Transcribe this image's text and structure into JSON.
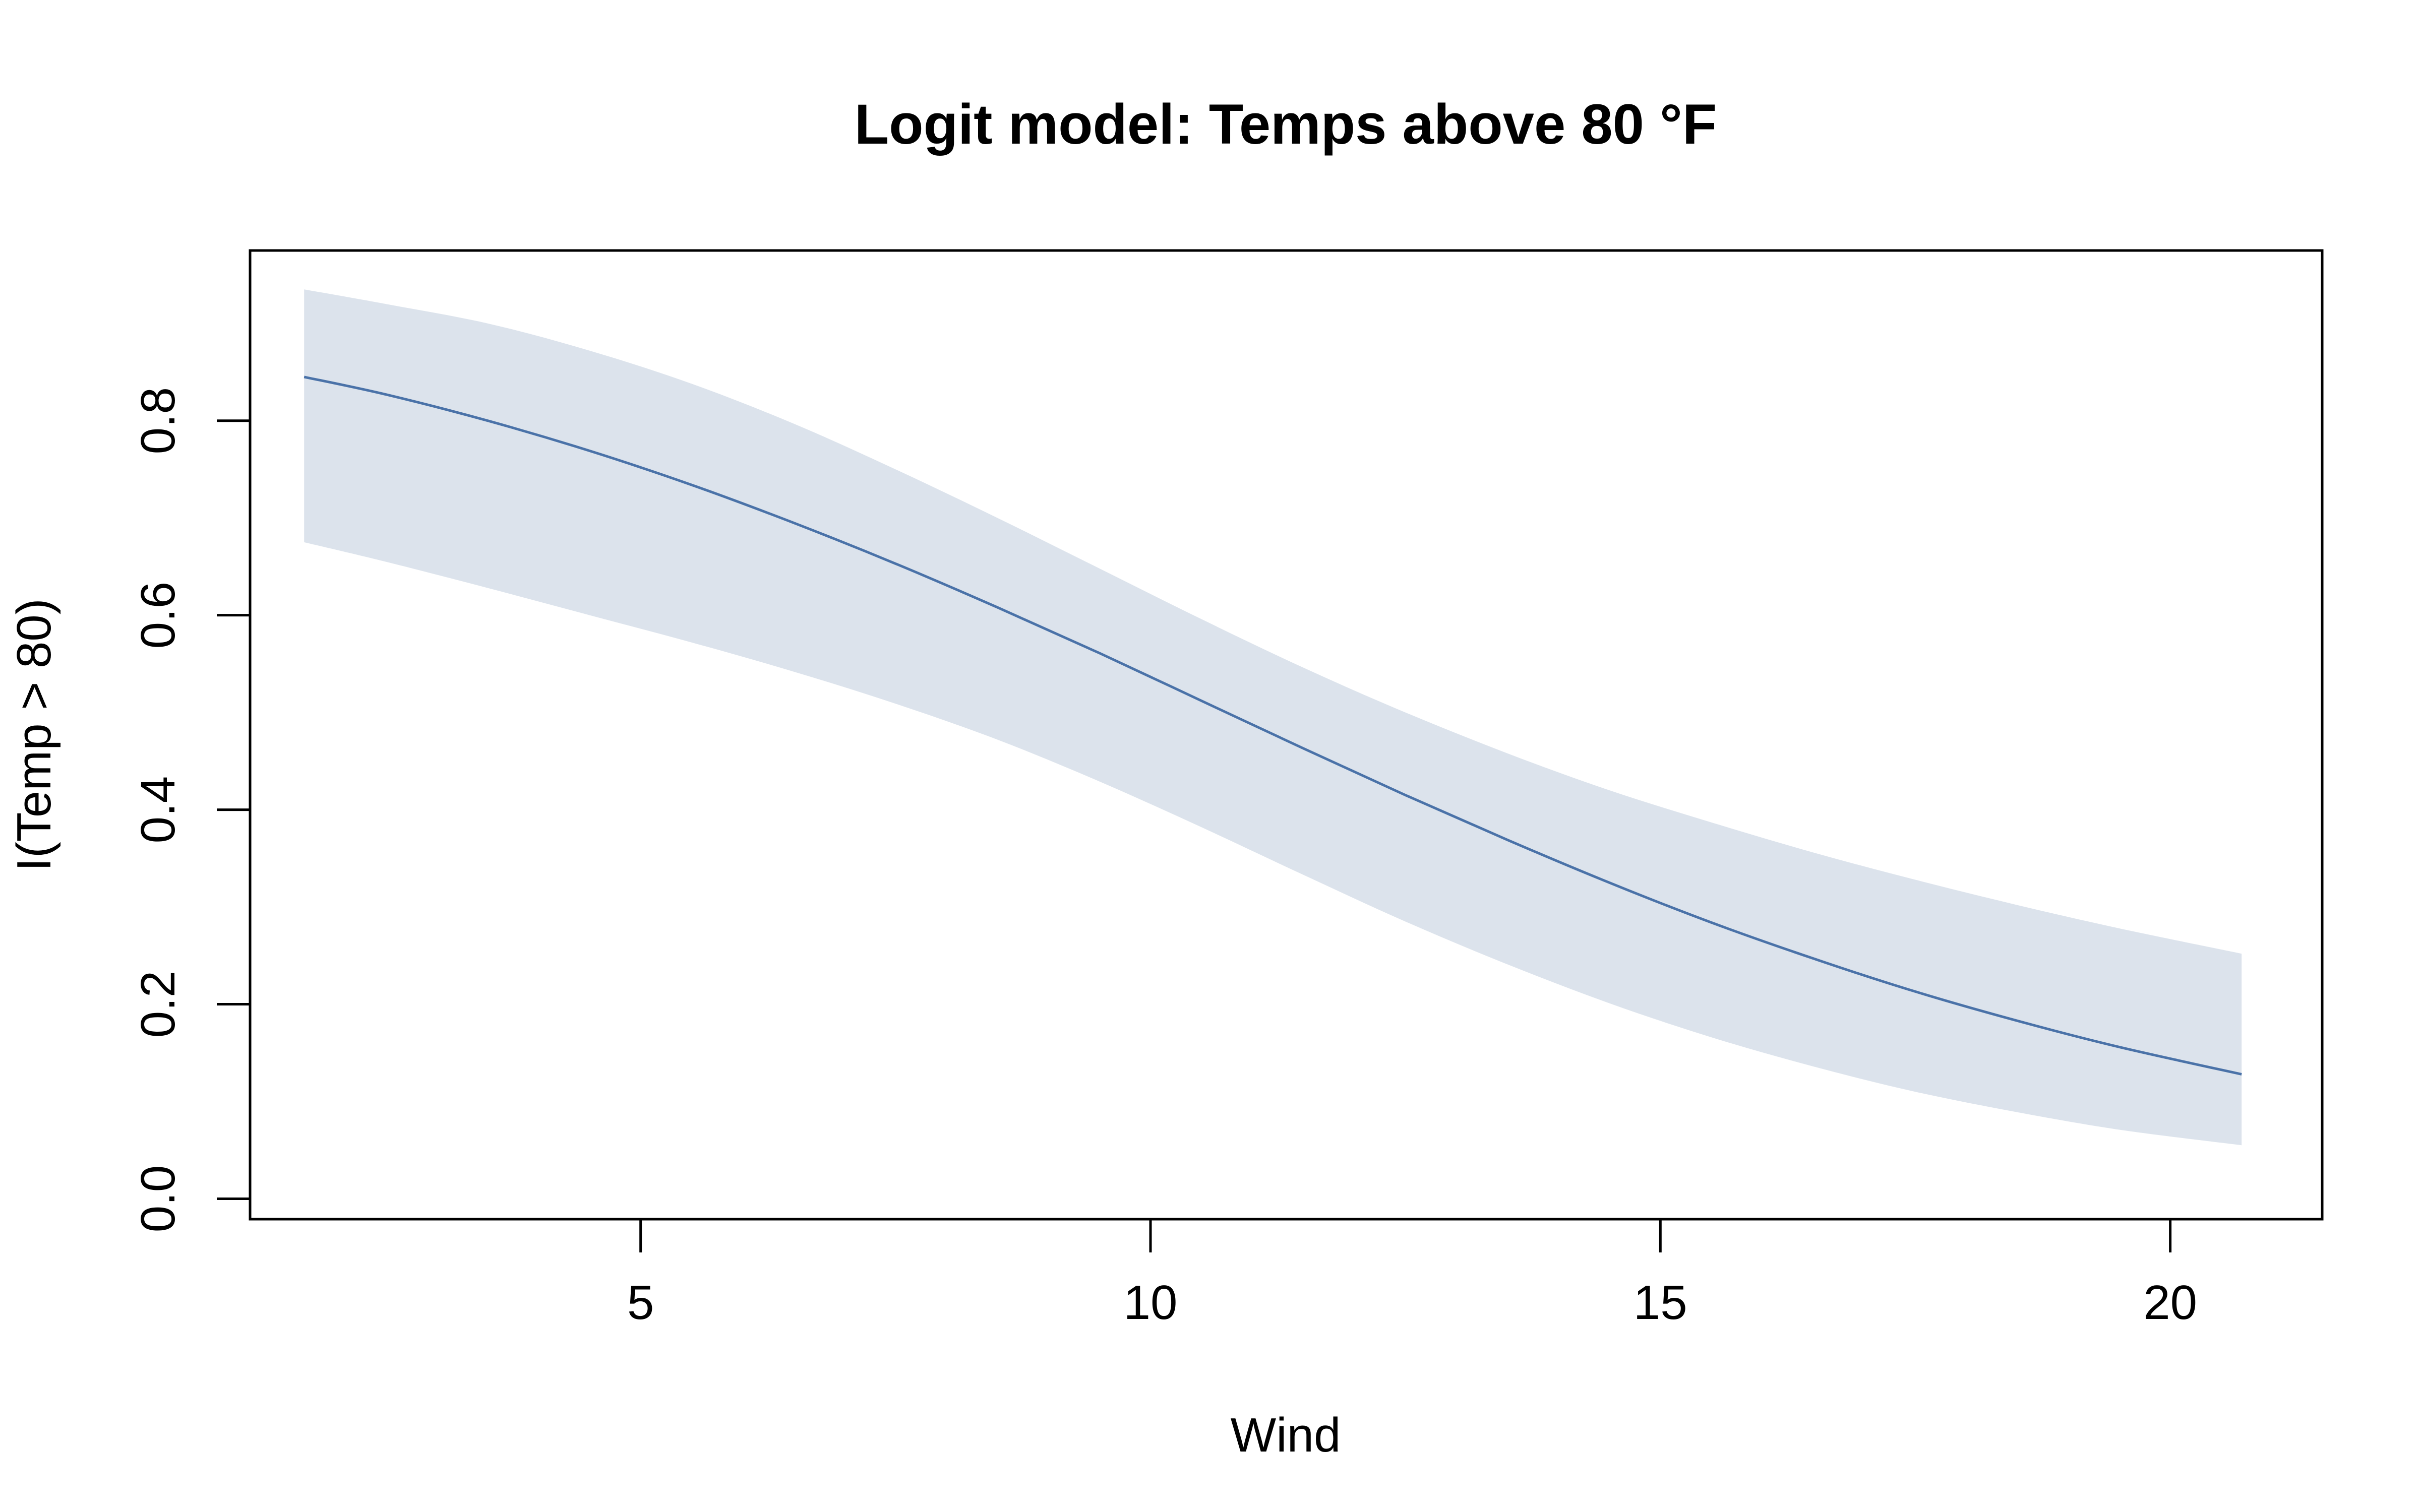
{
  "chart_data": {
    "type": "line",
    "title": "Logit model: Temps above 80 °F",
    "xlabel": "Wind",
    "ylabel": "I(Temp > 80)",
    "xlim": [
      1.17,
      21.49
    ],
    "ylim": [
      -0.021,
      0.975
    ],
    "xticks": [
      5,
      10,
      15,
      20
    ],
    "xtick_labels": [
      "5",
      "10",
      "15",
      "20"
    ],
    "yticks": [
      0.0,
      0.2,
      0.4,
      0.6,
      0.8
    ],
    "ytick_labels": [
      "0.0",
      "0.2",
      "0.4",
      "0.6",
      "0.8"
    ],
    "grid": false,
    "legend": "none",
    "colors": {
      "line": "#4a72a8",
      "band": "#dce3ec",
      "axis": "#000000"
    },
    "series": [
      {
        "x": [
          1.7,
          2.5,
          3.5,
          4.5,
          5.5,
          6.5,
          7.5,
          8.5,
          9.5,
          10.5,
          11.5,
          12.5,
          13.5,
          14.5,
          15.5,
          16.5,
          17.5,
          18.5,
          19.5,
          20.7
        ],
        "y": [
          0.845,
          0.827,
          0.8,
          0.769,
          0.734,
          0.695,
          0.653,
          0.608,
          0.561,
          0.512,
          0.463,
          0.415,
          0.369,
          0.325,
          0.284,
          0.247,
          0.213,
          0.183,
          0.156,
          0.128
        ],
        "band_upper": [
          0.935,
          0.92,
          0.9,
          0.872,
          0.838,
          0.797,
          0.75,
          0.7,
          0.648,
          0.596,
          0.546,
          0.5,
          0.458,
          0.42,
          0.387,
          0.356,
          0.328,
          0.302,
          0.278,
          0.252
        ],
        "band_lower": [
          0.675,
          0.655,
          0.628,
          0.6,
          0.572,
          0.542,
          0.509,
          0.472,
          0.429,
          0.382,
          0.333,
          0.285,
          0.241,
          0.201,
          0.166,
          0.136,
          0.11,
          0.089,
          0.071,
          0.055
        ]
      }
    ]
  }
}
